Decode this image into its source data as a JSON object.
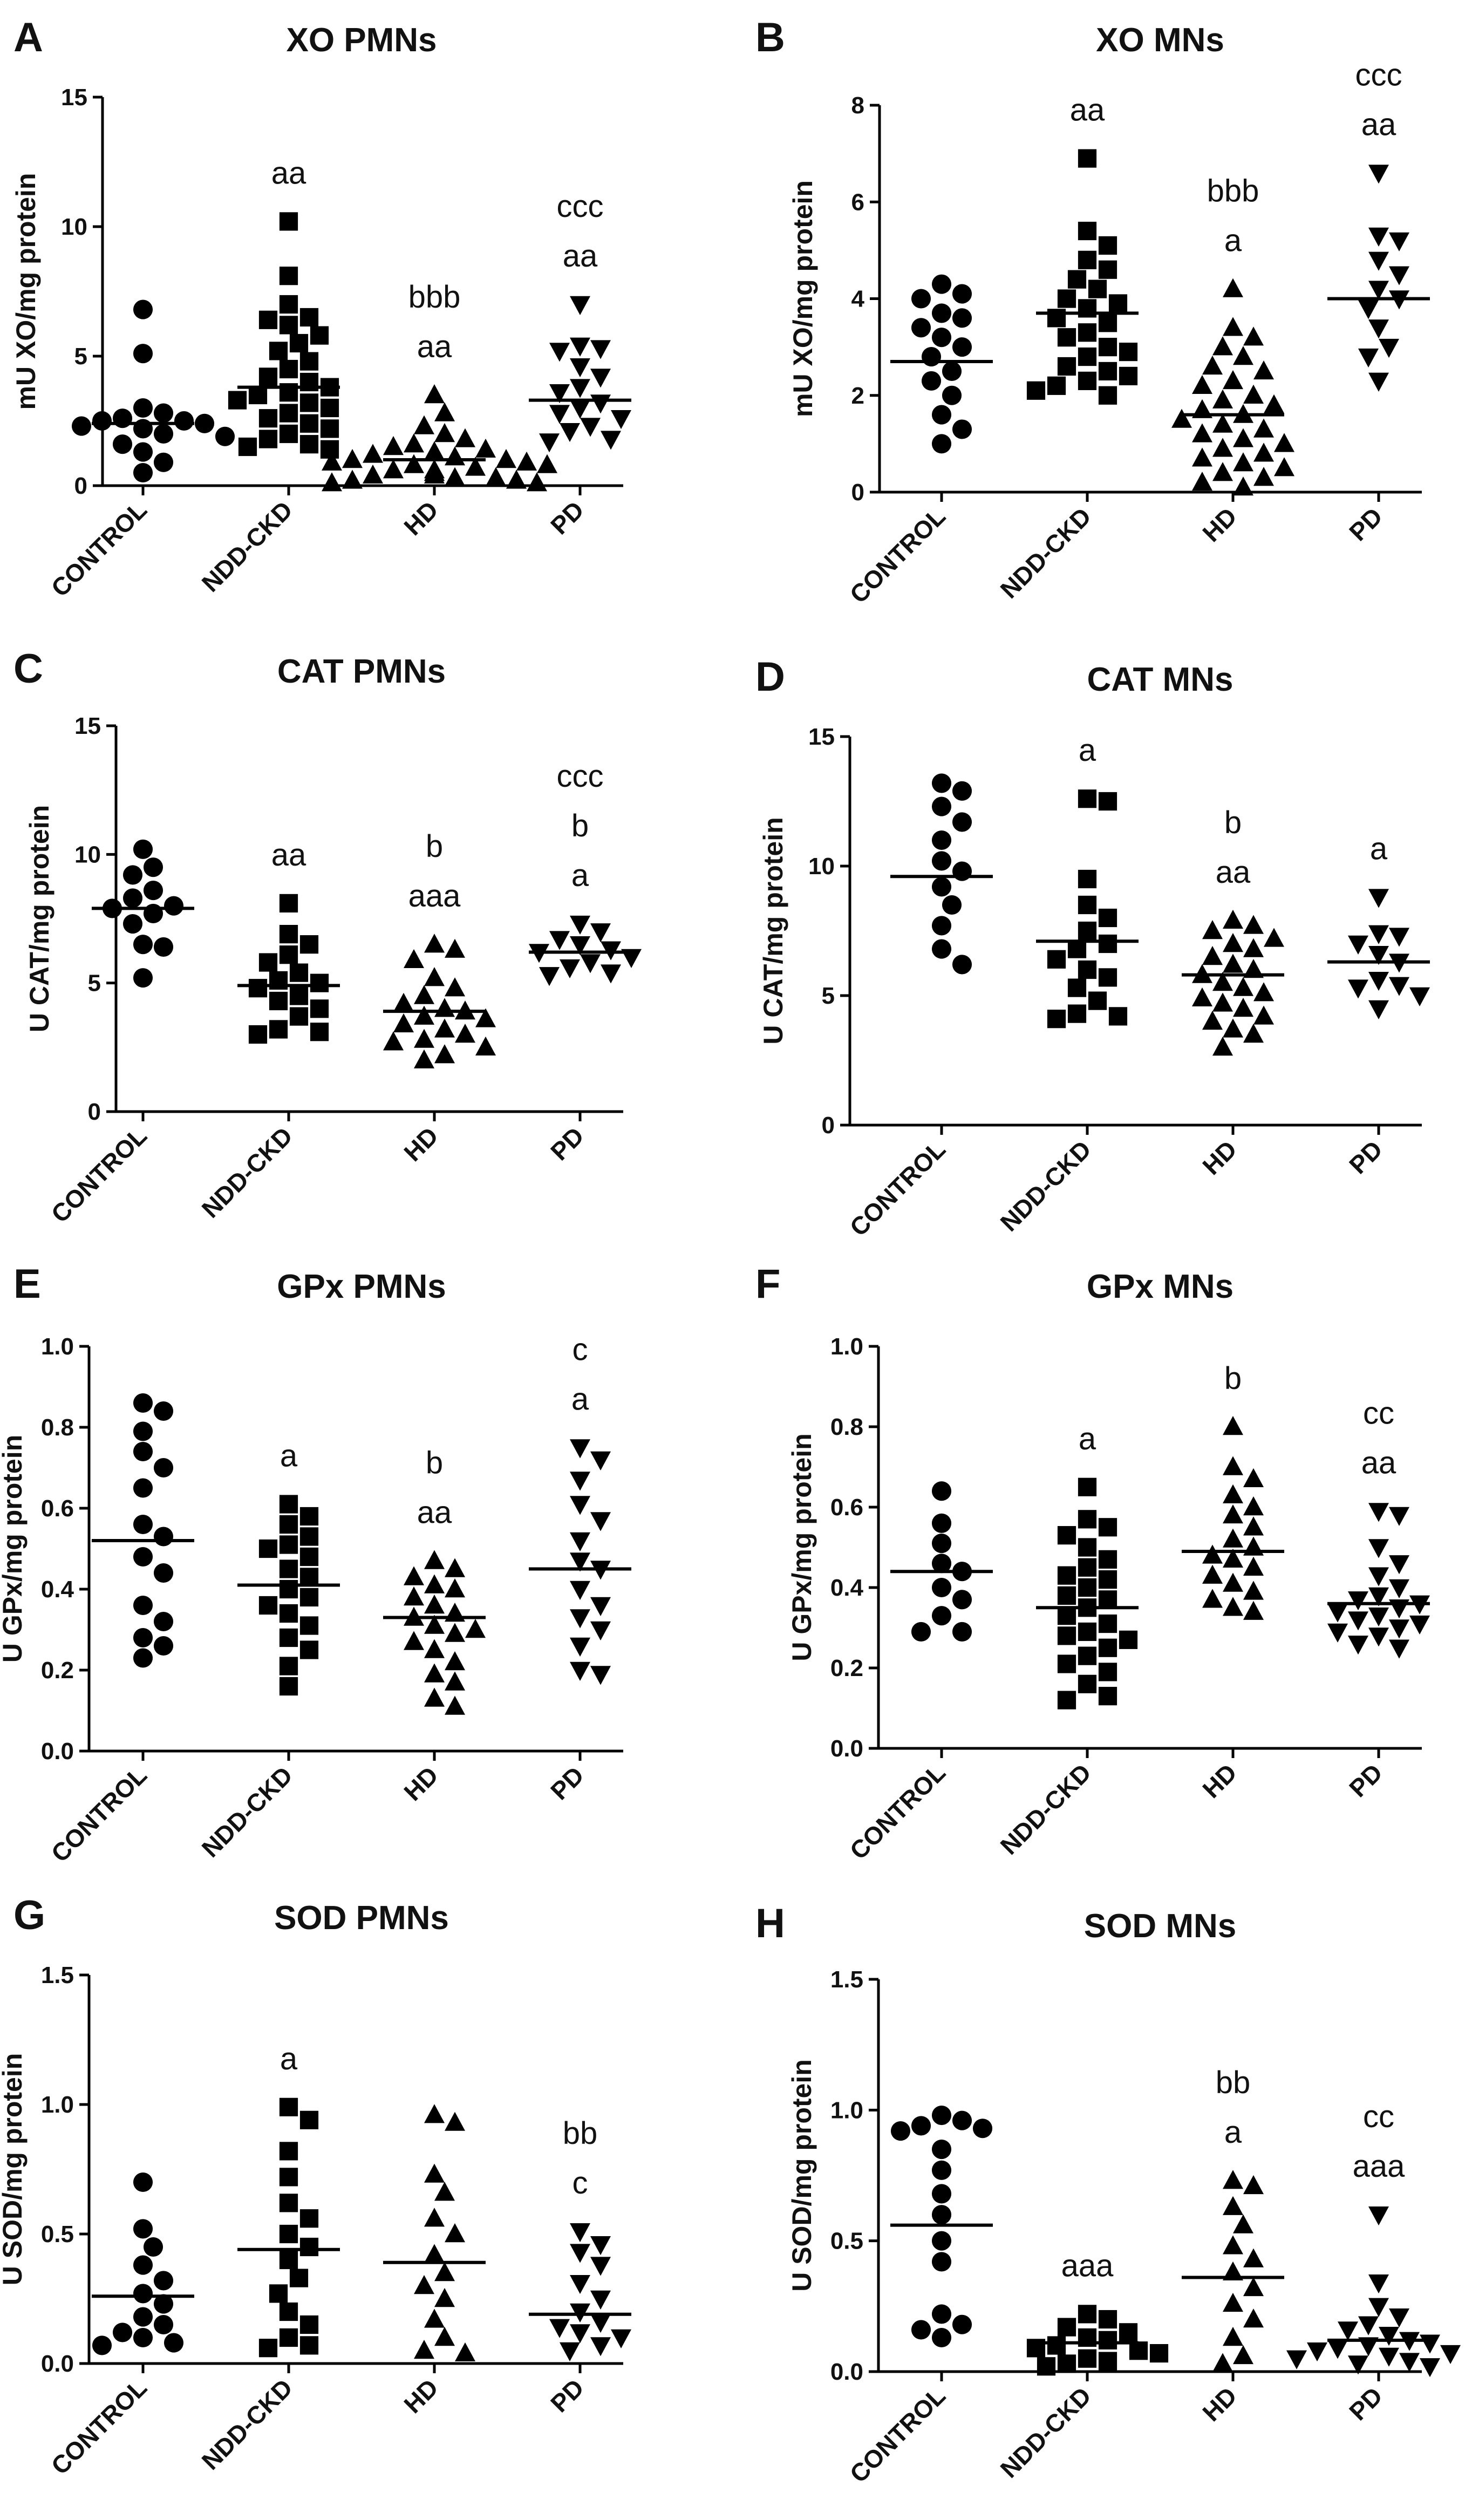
{
  "groups": [
    "CONTROL",
    "NDD-CKD",
    "HD",
    "PD"
  ],
  "chart_data": [
    {
      "panel": "A",
      "title": "XO PMNs",
      "ylabel": "mU XO/mg protein",
      "type": "scatter",
      "yticks": [
        "0",
        "5",
        "10",
        "15"
      ],
      "ylim": [
        0,
        15
      ],
      "marker_scale": 1,
      "groups": [
        {
          "name": "CONTROL",
          "marker": "circle",
          "mean": 2.4,
          "sig": [],
          "values": [
            6.8,
            5.1,
            3.0,
            2.8,
            2.6,
            2.5,
            2.5,
            2.4,
            2.3,
            2.2,
            2.0,
            1.9,
            1.6,
            1.3,
            0.9,
            0.5
          ]
        },
        {
          "name": "NDD-CKD",
          "marker": "square",
          "mean": 3.8,
          "sig": [
            "aa"
          ],
          "values": [
            10.2,
            8.1,
            7.0,
            6.5,
            6.4,
            6.2,
            5.8,
            5.5,
            5.2,
            4.8,
            4.5,
            4.2,
            4.0,
            3.8,
            3.6,
            3.5,
            3.3,
            3.2,
            3.0,
            2.8,
            2.6,
            2.4,
            2.2,
            2.0,
            1.8,
            1.6,
            1.5,
            1.4
          ]
        },
        {
          "name": "HD",
          "marker": "triangle",
          "mean": 1.0,
          "sig": [
            "bbb",
            "aa"
          ],
          "values": [
            3.5,
            2.8,
            2.3,
            2.0,
            1.8,
            1.6,
            1.5,
            1.4,
            1.3,
            1.2,
            1.1,
            1.0,
            1.0,
            0.9,
            0.9,
            0.8,
            0.8,
            0.7,
            0.6,
            0.6,
            0.5,
            0.5,
            0.4,
            0.4,
            0.3,
            0.3,
            0.2,
            0.2,
            0.1,
            0.1
          ]
        },
        {
          "name": "PD",
          "marker": "triangle-down",
          "mean": 3.3,
          "sig": [
            "ccc",
            "aa"
          ],
          "values": [
            7.0,
            5.4,
            5.3,
            5.2,
            4.6,
            4.2,
            3.8,
            3.6,
            3.2,
            3.0,
            2.8,
            2.6,
            2.3,
            2.1,
            1.8,
            1.7
          ]
        }
      ]
    },
    {
      "panel": "B",
      "title": "XO MNs",
      "ylabel": "mU XO/mg protein",
      "type": "scatter",
      "yticks": [
        "0",
        "2",
        "4",
        "6",
        "8"
      ],
      "ylim": [
        0,
        8
      ],
      "marker_scale": 1,
      "groups": [
        {
          "name": "CONTROL",
          "marker": "circle",
          "mean": 2.7,
          "sig": [],
          "values": [
            4.3,
            4.1,
            4.0,
            3.7,
            3.6,
            3.4,
            3.2,
            3.0,
            2.8,
            2.5,
            2.3,
            2.0,
            1.6,
            1.3,
            1.0
          ]
        },
        {
          "name": "NDD-CKD",
          "marker": "square",
          "mean": 3.7,
          "sig": [
            "aa"
          ],
          "values": [
            6.9,
            5.4,
            5.1,
            4.8,
            4.6,
            4.4,
            4.2,
            4.0,
            3.9,
            3.8,
            3.6,
            3.5,
            3.3,
            3.2,
            3.0,
            2.9,
            2.8,
            2.6,
            2.5,
            2.4,
            2.3,
            2.2,
            2.1,
            2.0
          ]
        },
        {
          "name": "HD",
          "marker": "triangle",
          "mean": 1.6,
          "sig": [
            "bbb",
            "a"
          ],
          "values": [
            4.2,
            3.4,
            3.2,
            3.0,
            2.8,
            2.6,
            2.5,
            2.3,
            2.2,
            2.0,
            1.9,
            1.8,
            1.7,
            1.6,
            1.5,
            1.4,
            1.3,
            1.2,
            1.1,
            1.0,
            0.9,
            0.8,
            0.7,
            0.6,
            0.5,
            0.4,
            0.3,
            0.2,
            0.1
          ]
        },
        {
          "name": "PD",
          "marker": "triangle-down",
          "mean": 4.0,
          "sig": [
            "ccc",
            "aa"
          ],
          "values": [
            6.6,
            5.3,
            5.2,
            4.8,
            4.5,
            4.2,
            4.0,
            3.8,
            3.4,
            3.0,
            2.8,
            2.3
          ]
        }
      ]
    },
    {
      "panel": "C",
      "title": "CAT PMNs",
      "ylabel": "U CAT/mg protein",
      "type": "scatter",
      "yticks": [
        "0",
        "5",
        "10",
        "15"
      ],
      "ylim": [
        0,
        15
      ],
      "marker_scale": 1,
      "groups": [
        {
          "name": "CONTROL",
          "marker": "circle",
          "mean": 7.9,
          "sig": [],
          "values": [
            10.2,
            9.5,
            9.2,
            8.6,
            8.3,
            8.0,
            7.9,
            7.7,
            7.3,
            6.5,
            6.4,
            5.2
          ]
        },
        {
          "name": "NDD-CKD",
          "marker": "square",
          "mean": 4.9,
          "sig": [
            "aa"
          ],
          "values": [
            8.1,
            6.9,
            6.5,
            6.1,
            5.8,
            5.4,
            5.1,
            5.0,
            4.8,
            4.5,
            4.3,
            4.0,
            3.7,
            3.2,
            3.1,
            3.0
          ]
        },
        {
          "name": "HD",
          "marker": "triangle",
          "mean": 3.9,
          "sig": [
            "b",
            "aaa"
          ],
          "values": [
            6.5,
            6.3,
            5.9,
            5.2,
            4.8,
            4.5,
            4.2,
            4.0,
            3.9,
            3.7,
            3.6,
            3.4,
            3.2,
            3.0,
            2.8,
            2.7,
            2.5,
            2.2,
            2.0
          ]
        },
        {
          "name": "PD",
          "marker": "triangle-down",
          "mean": 6.2,
          "sig": [
            "ccc",
            "b",
            "a"
          ],
          "values": [
            7.3,
            7.0,
            6.7,
            6.5,
            6.3,
            6.2,
            6.0,
            5.8,
            5.6,
            5.4,
            5.3
          ]
        }
      ]
    },
    {
      "panel": "D",
      "title": "CAT MNs",
      "ylabel": "U CAT/mg protein",
      "type": "scatter",
      "yticks": [
        "0",
        "5",
        "10",
        "15"
      ],
      "ylim": [
        0,
        15
      ],
      "marker_scale": 1,
      "groups": [
        {
          "name": "CONTROL",
          "marker": "circle",
          "mean": 9.6,
          "sig": [],
          "values": [
            13.2,
            12.9,
            12.3,
            11.7,
            11.0,
            10.2,
            9.8,
            9.2,
            8.5,
            7.7,
            6.8,
            6.2
          ]
        },
        {
          "name": "NDD-CKD",
          "marker": "square",
          "mean": 7.1,
          "sig": [
            "a"
          ],
          "values": [
            12.6,
            12.5,
            9.5,
            8.5,
            8.0,
            7.5,
            7.0,
            6.8,
            6.4,
            6.0,
            5.7,
            5.3,
            4.8,
            4.3,
            4.2,
            4.1
          ]
        },
        {
          "name": "HD",
          "marker": "triangle",
          "mean": 5.8,
          "sig": [
            "b",
            "aa"
          ],
          "values": [
            7.9,
            7.7,
            7.5,
            7.2,
            7.0,
            6.8,
            6.5,
            6.2,
            6.0,
            5.8,
            5.5,
            5.3,
            5.1,
            4.9,
            4.7,
            4.5,
            4.2,
            4.0,
            3.7,
            3.5,
            3.0
          ]
        },
        {
          "name": "PD",
          "marker": "triangle-down",
          "mean": 6.3,
          "sig": [
            "a"
          ],
          "values": [
            8.8,
            7.4,
            7.3,
            7.0,
            6.6,
            6.3,
            5.6,
            5.4,
            5.3,
            5.0,
            4.5
          ]
        }
      ]
    },
    {
      "panel": "E",
      "title": "GPx PMNs",
      "ylabel": "U GPx/mg protein",
      "type": "scatter",
      "yticks": [
        "0.0",
        "0.2",
        "0.4",
        "0.6",
        "0.8",
        "1.0"
      ],
      "ylim": [
        0,
        1.0
      ],
      "marker_scale": 1,
      "groups": [
        {
          "name": "CONTROL",
          "marker": "circle",
          "mean": 0.52,
          "sig": [],
          "values": [
            0.86,
            0.84,
            0.79,
            0.74,
            0.7,
            0.65,
            0.56,
            0.53,
            0.48,
            0.44,
            0.36,
            0.32,
            0.28,
            0.26,
            0.23
          ]
        },
        {
          "name": "NDD-CKD",
          "marker": "square",
          "mean": 0.41,
          "sig": [
            "a"
          ],
          "values": [
            0.61,
            0.58,
            0.56,
            0.53,
            0.51,
            0.5,
            0.48,
            0.45,
            0.43,
            0.4,
            0.38,
            0.36,
            0.34,
            0.31,
            0.28,
            0.25,
            0.21,
            0.16
          ]
        },
        {
          "name": "HD",
          "marker": "triangle",
          "mean": 0.33,
          "sig": [
            "b",
            "aa"
          ],
          "values": [
            0.47,
            0.45,
            0.43,
            0.41,
            0.4,
            0.38,
            0.36,
            0.34,
            0.33,
            0.31,
            0.3,
            0.29,
            0.27,
            0.25,
            0.22,
            0.19,
            0.17,
            0.13,
            0.11
          ]
        },
        {
          "name": "PD",
          "marker": "triangle-down",
          "mean": 0.45,
          "sig": [
            "c",
            "a"
          ],
          "values": [
            0.75,
            0.72,
            0.67,
            0.61,
            0.57,
            0.52,
            0.47,
            0.45,
            0.4,
            0.36,
            0.33,
            0.3,
            0.26,
            0.2,
            0.19
          ]
        }
      ]
    },
    {
      "panel": "F",
      "title": "GPx MNs",
      "ylabel": "U GPx/mg protein",
      "type": "scatter",
      "yticks": [
        "0.0",
        "0.2",
        "0.4",
        "0.6",
        "0.8",
        "1.0"
      ],
      "ylim": [
        0,
        1.0
      ],
      "marker_scale": 1,
      "groups": [
        {
          "name": "CONTROL",
          "marker": "circle",
          "mean": 0.44,
          "sig": [],
          "values": [
            0.64,
            0.56,
            0.51,
            0.46,
            0.44,
            0.4,
            0.37,
            0.33,
            0.29,
            0.29
          ]
        },
        {
          "name": "NDD-CKD",
          "marker": "square",
          "mean": 0.35,
          "sig": [
            "a"
          ],
          "values": [
            0.65,
            0.57,
            0.55,
            0.53,
            0.5,
            0.47,
            0.45,
            0.43,
            0.42,
            0.4,
            0.38,
            0.37,
            0.35,
            0.33,
            0.31,
            0.29,
            0.28,
            0.27,
            0.25,
            0.23,
            0.21,
            0.19,
            0.16,
            0.13,
            0.12
          ]
        },
        {
          "name": "HD",
          "marker": "triangle",
          "mean": 0.49,
          "sig": [
            "b"
          ],
          "values": [
            0.8,
            0.7,
            0.67,
            0.63,
            0.6,
            0.58,
            0.55,
            0.52,
            0.5,
            0.48,
            0.47,
            0.45,
            0.43,
            0.41,
            0.39,
            0.37,
            0.35,
            0.34
          ]
        },
        {
          "name": "PD",
          "marker": "triangle-down",
          "mean": 0.36,
          "sig": [
            "cc",
            "aa"
          ],
          "values": [
            0.59,
            0.58,
            0.5,
            0.46,
            0.43,
            0.4,
            0.38,
            0.37,
            0.36,
            0.35,
            0.34,
            0.33,
            0.32,
            0.31,
            0.3,
            0.29,
            0.28,
            0.26,
            0.25
          ]
        }
      ]
    },
    {
      "panel": "G",
      "title": "SOD PMNs",
      "ylabel": "U SOD/mg protein",
      "type": "scatter",
      "yticks": [
        "0.0",
        "0.5",
        "1.0",
        "1.5"
      ],
      "ylim": [
        0,
        1.5
      ],
      "marker_scale": 1,
      "groups": [
        {
          "name": "CONTROL",
          "marker": "circle",
          "mean": 0.26,
          "sig": [],
          "values": [
            0.7,
            0.52,
            0.45,
            0.38,
            0.32,
            0.27,
            0.23,
            0.18,
            0.15,
            0.12,
            0.1,
            0.08,
            0.07
          ]
        },
        {
          "name": "NDD-CKD",
          "marker": "square",
          "mean": 0.44,
          "sig": [
            "a"
          ],
          "values": [
            0.99,
            0.94,
            0.82,
            0.72,
            0.62,
            0.56,
            0.5,
            0.45,
            0.4,
            0.33,
            0.27,
            0.2,
            0.15,
            0.1,
            0.07,
            0.06
          ]
        },
        {
          "name": "HD",
          "marker": "triangle",
          "mean": 0.39,
          "sig": [],
          "values": [
            0.96,
            0.93,
            0.73,
            0.66,
            0.56,
            0.5,
            0.42,
            0.35,
            0.3,
            0.25,
            0.17,
            0.1,
            0.05,
            0.04
          ]
        },
        {
          "name": "PD",
          "marker": "triangle-down",
          "mean": 0.19,
          "sig": [
            "bb",
            "c"
          ],
          "values": [
            0.51,
            0.46,
            0.43,
            0.38,
            0.31,
            0.25,
            0.2,
            0.16,
            0.14,
            0.12,
            0.1,
            0.07,
            0.05
          ]
        }
      ]
    },
    {
      "panel": "H",
      "title": "SOD MNs",
      "ylabel": "U SOD/mg protein",
      "type": "scatter",
      "yticks": [
        "0.0",
        "0.5",
        "1.0",
        "1.5"
      ],
      "ylim": [
        0,
        1.5
      ],
      "marker_scale": 1,
      "groups": [
        {
          "name": "CONTROL",
          "marker": "circle",
          "mean": 0.56,
          "sig": [],
          "values": [
            0.98,
            0.96,
            0.94,
            0.93,
            0.92,
            0.85,
            0.77,
            0.68,
            0.6,
            0.5,
            0.42,
            0.22,
            0.18,
            0.16,
            0.13
          ]
        },
        {
          "name": "NDD-CKD",
          "marker": "square",
          "mean": 0.11,
          "sig": [
            "aaa"
          ],
          "values": [
            0.22,
            0.2,
            0.17,
            0.15,
            0.13,
            0.12,
            0.1,
            0.09,
            0.08,
            0.07,
            0.05,
            0.04,
            0.03,
            0.02
          ]
        },
        {
          "name": "HD",
          "marker": "triangle",
          "mean": 0.36,
          "sig": [
            "bb",
            "a"
          ],
          "values": [
            0.73,
            0.71,
            0.63,
            0.56,
            0.48,
            0.43,
            0.38,
            0.32,
            0.26,
            0.2,
            0.13,
            0.06,
            0.03
          ]
        },
        {
          "name": "PD",
          "marker": "triangle-down",
          "mean": 0.12,
          "sig": [
            "cc",
            "aaa"
          ],
          "values": [
            0.6,
            0.34,
            0.25,
            0.21,
            0.18,
            0.16,
            0.14,
            0.12,
            0.11,
            0.1,
            0.09,
            0.08,
            0.07,
            0.06,
            0.05,
            0.04,
            0.03,
            0.02
          ]
        }
      ]
    }
  ]
}
